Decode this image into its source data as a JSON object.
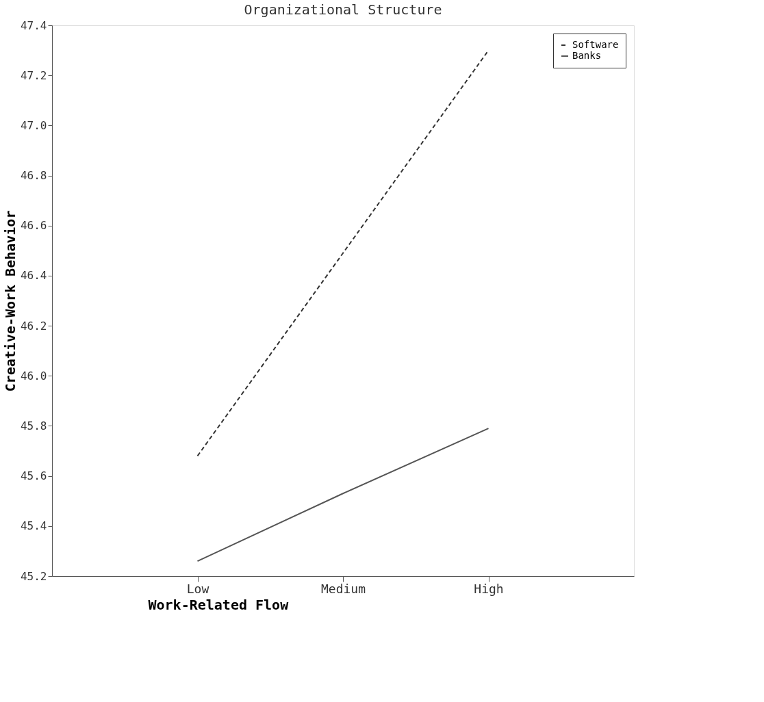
{
  "chart_data": {
    "type": "line",
    "title": "Organizational Structure",
    "xlabel": "Work-Related Flow",
    "ylabel": "Creative-Work Behavior",
    "categories": [
      "Low",
      "Medium",
      "High"
    ],
    "series": [
      {
        "name": "Software",
        "color": "#333333",
        "line_style": "dashed",
        "values": [
          45.68,
          46.49,
          47.3
        ]
      },
      {
        "name": "Banks",
        "color": "#555555",
        "line_style": "solid",
        "values": [
          45.26,
          45.53,
          45.79
        ]
      }
    ],
    "ylim": [
      45.2,
      47.4
    ],
    "yticks": [
      {
        "value": 45.2,
        "label": "45.2"
      },
      {
        "value": 45.4,
        "label": "45.4"
      },
      {
        "value": 45.6,
        "label": "45.6"
      },
      {
        "value": 45.8,
        "label": "45.8"
      },
      {
        "value": 46.0,
        "label": "46.0"
      },
      {
        "value": 46.2,
        "label": "46.2"
      },
      {
        "value": 46.4,
        "label": "46.4"
      },
      {
        "value": 46.6,
        "label": "46.6"
      },
      {
        "value": 46.8,
        "label": "46.8"
      },
      {
        "value": 47.0,
        "label": "47.0"
      },
      {
        "value": 47.2,
        "label": "47.2"
      },
      {
        "value": 47.4,
        "label": "47.4"
      }
    ],
    "grid": false,
    "legend": "top right",
    "marker": "none"
  }
}
